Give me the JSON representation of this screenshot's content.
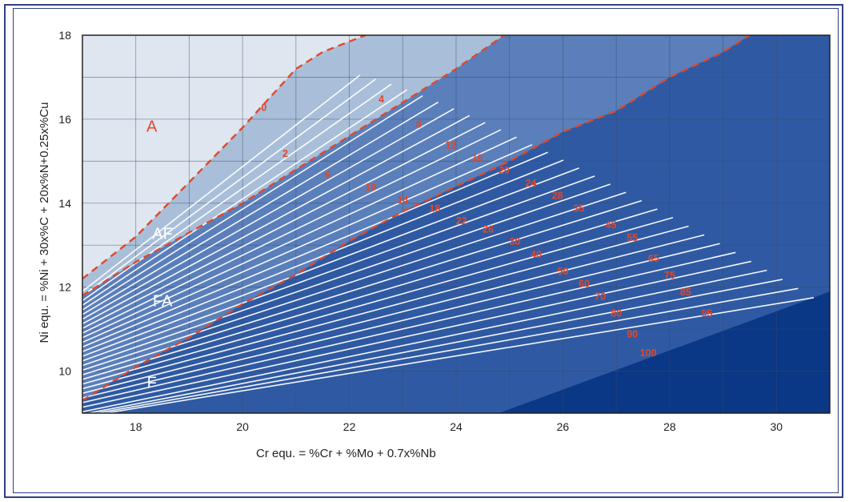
{
  "chart_data": {
    "type": "area",
    "title": "",
    "xlabel": "Cr equ.  = %Cr + %Mo +  0.7x%Nb",
    "ylabel": "Ni equ.  = %Ni + 30x%C + 20x%N+0.25x%Cu",
    "xlim": [
      17,
      31
    ],
    "ylim": [
      9,
      18
    ],
    "x_ticks": [
      18,
      20,
      22,
      24,
      26,
      28,
      30
    ],
    "y_ticks": [
      10,
      12,
      14,
      16,
      18
    ],
    "grid": true,
    "region_labels": [
      {
        "text": "A",
        "x": 18.3,
        "y": 15.7,
        "color": "#e0482a"
      },
      {
        "text": "AF",
        "x": 18.5,
        "y": 13.15,
        "color": "#ffffff"
      },
      {
        "text": "FA",
        "x": 18.5,
        "y": 11.55,
        "color": "#ffffff"
      },
      {
        "text": "F",
        "x": 18.3,
        "y": 9.6,
        "color": "#ffffff"
      }
    ],
    "boundaries": [
      {
        "name": "",
        "points": [
          [
            17,
            12.2
          ],
          [
            18,
            13.2
          ],
          [
            19,
            14.5
          ],
          [
            20,
            15.8
          ],
          [
            21,
            17.2
          ],
          [
            21.5,
            17.6
          ],
          [
            22.3,
            18
          ]
        ]
      },
      {
        "name": "",
        "points": [
          [
            17,
            11.8
          ],
          [
            18,
            12.6
          ],
          [
            19,
            13.3
          ],
          [
            20,
            14.0
          ],
          [
            21,
            14.8
          ],
          [
            22,
            15.6
          ],
          [
            23,
            16.4
          ],
          [
            24,
            17.2
          ],
          [
            24.9,
            18
          ]
        ]
      },
      {
        "name": "",
        "points": [
          [
            17,
            9.3
          ],
          [
            18,
            10.1
          ],
          [
            19,
            10.8
          ],
          [
            20,
            11.6
          ],
          [
            21,
            12.3
          ],
          [
            22,
            13.1
          ],
          [
            23,
            13.8
          ],
          [
            24,
            14.4
          ],
          [
            25,
            15.0
          ],
          [
            26,
            15.7
          ],
          [
            27,
            16.2
          ],
          [
            28,
            17.0
          ],
          [
            29,
            17.6
          ],
          [
            29.5,
            18
          ]
        ]
      }
    ],
    "ferrite_lines": [
      {
        "label": "0",
        "lx": 20.4,
        "ly": 16.2
      },
      {
        "label": "2",
        "lx": 20.8,
        "ly": 15.1
      },
      {
        "label": "4",
        "lx": 22.6,
        "ly": 16.4
      },
      {
        "label": "6",
        "lx": 21.6,
        "ly": 14.6
      },
      {
        "label": "8",
        "lx": 23.3,
        "ly": 15.8
      },
      {
        "label": "10",
        "lx": 22.4,
        "ly": 14.3
      },
      {
        "label": "12",
        "lx": 23.9,
        "ly": 15.3
      },
      {
        "label": "14",
        "lx": 23.0,
        "ly": 14.0
      },
      {
        "label": "16",
        "lx": 24.4,
        "ly": 15.0
      },
      {
        "label": "18",
        "lx": 23.6,
        "ly": 13.8
      },
      {
        "label": "20",
        "lx": 24.9,
        "ly": 14.7
      },
      {
        "label": "22",
        "lx": 24.1,
        "ly": 13.5
      },
      {
        "label": "24",
        "lx": 25.4,
        "ly": 14.4
      },
      {
        "label": "26",
        "lx": 24.6,
        "ly": 13.3
      },
      {
        "label": "28",
        "lx": 25.9,
        "ly": 14.1
      },
      {
        "label": "30",
        "lx": 25.1,
        "ly": 13.0
      },
      {
        "label": "35",
        "lx": 26.3,
        "ly": 13.8
      },
      {
        "label": "40",
        "lx": 25.5,
        "ly": 12.7
      },
      {
        "label": "45",
        "lx": 26.9,
        "ly": 13.4
      },
      {
        "label": "50",
        "lx": 26.0,
        "ly": 12.3
      },
      {
        "label": "55",
        "lx": 27.3,
        "ly": 13.1
      },
      {
        "label": "60",
        "lx": 26.4,
        "ly": 12.0
      },
      {
        "label": "65",
        "lx": 27.7,
        "ly": 12.6
      },
      {
        "label": "70",
        "lx": 26.7,
        "ly": 11.7
      },
      {
        "label": "75",
        "lx": 28.0,
        "ly": 12.2
      },
      {
        "label": "80",
        "lx": 27.0,
        "ly": 11.3
      },
      {
        "label": "85",
        "lx": 28.3,
        "ly": 11.8
      },
      {
        "label": "90",
        "lx": 27.3,
        "ly": 10.8
      },
      {
        "label": "95",
        "lx": 28.7,
        "ly": 11.3
      },
      {
        "label": "100",
        "lx": 27.6,
        "ly": 10.35
      }
    ],
    "colors": {
      "austenite": "#dfe6f0",
      "austenite_ferrite": "#a9bfd9",
      "ferrite_austenite": "#5a7fbb",
      "ferrite": "#2f5aa3",
      "corner": "#0a3786",
      "boundary": "#e0482a",
      "iso_lines": "#ffffff"
    }
  }
}
